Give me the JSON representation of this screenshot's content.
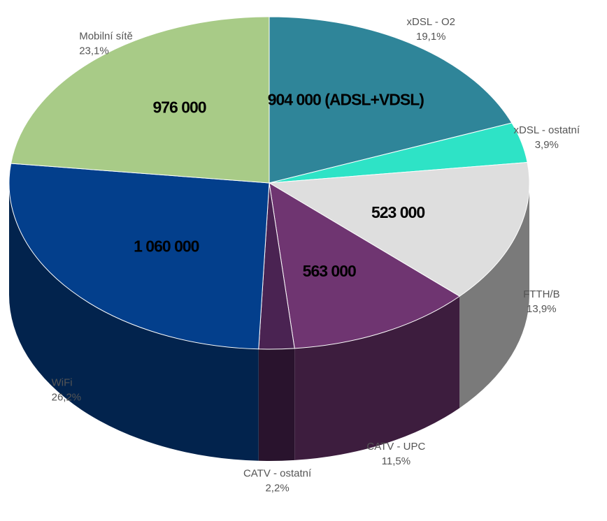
{
  "chart_data": {
    "type": "pie3d",
    "categories": [
      "xDSL - O2",
      "xDSL - ostatní",
      "FTTH/B",
      "CATV - UPC",
      "CATV - ostatní",
      "WiFi",
      "Mobilní sítě"
    ],
    "values": [
      19.1,
      3.9,
      13.9,
      11.5,
      2.2,
      26.2,
      23.1
    ],
    "value_labels": [
      "19,1%",
      "3,9%",
      "13,9%",
      "11,5%",
      "2,2%",
      "26,2%",
      "23,1%"
    ],
    "inner_labels": [
      "904 000 (ADSL+VDSL)",
      null,
      "523 000",
      "563 000",
      null,
      "1 060 000",
      "976 000"
    ],
    "colors": [
      "#2f8599",
      "#2ee3c6",
      "#dedede",
      "#6f3571",
      "#4a2352",
      "#033f8c",
      "#a8cb87"
    ]
  }
}
